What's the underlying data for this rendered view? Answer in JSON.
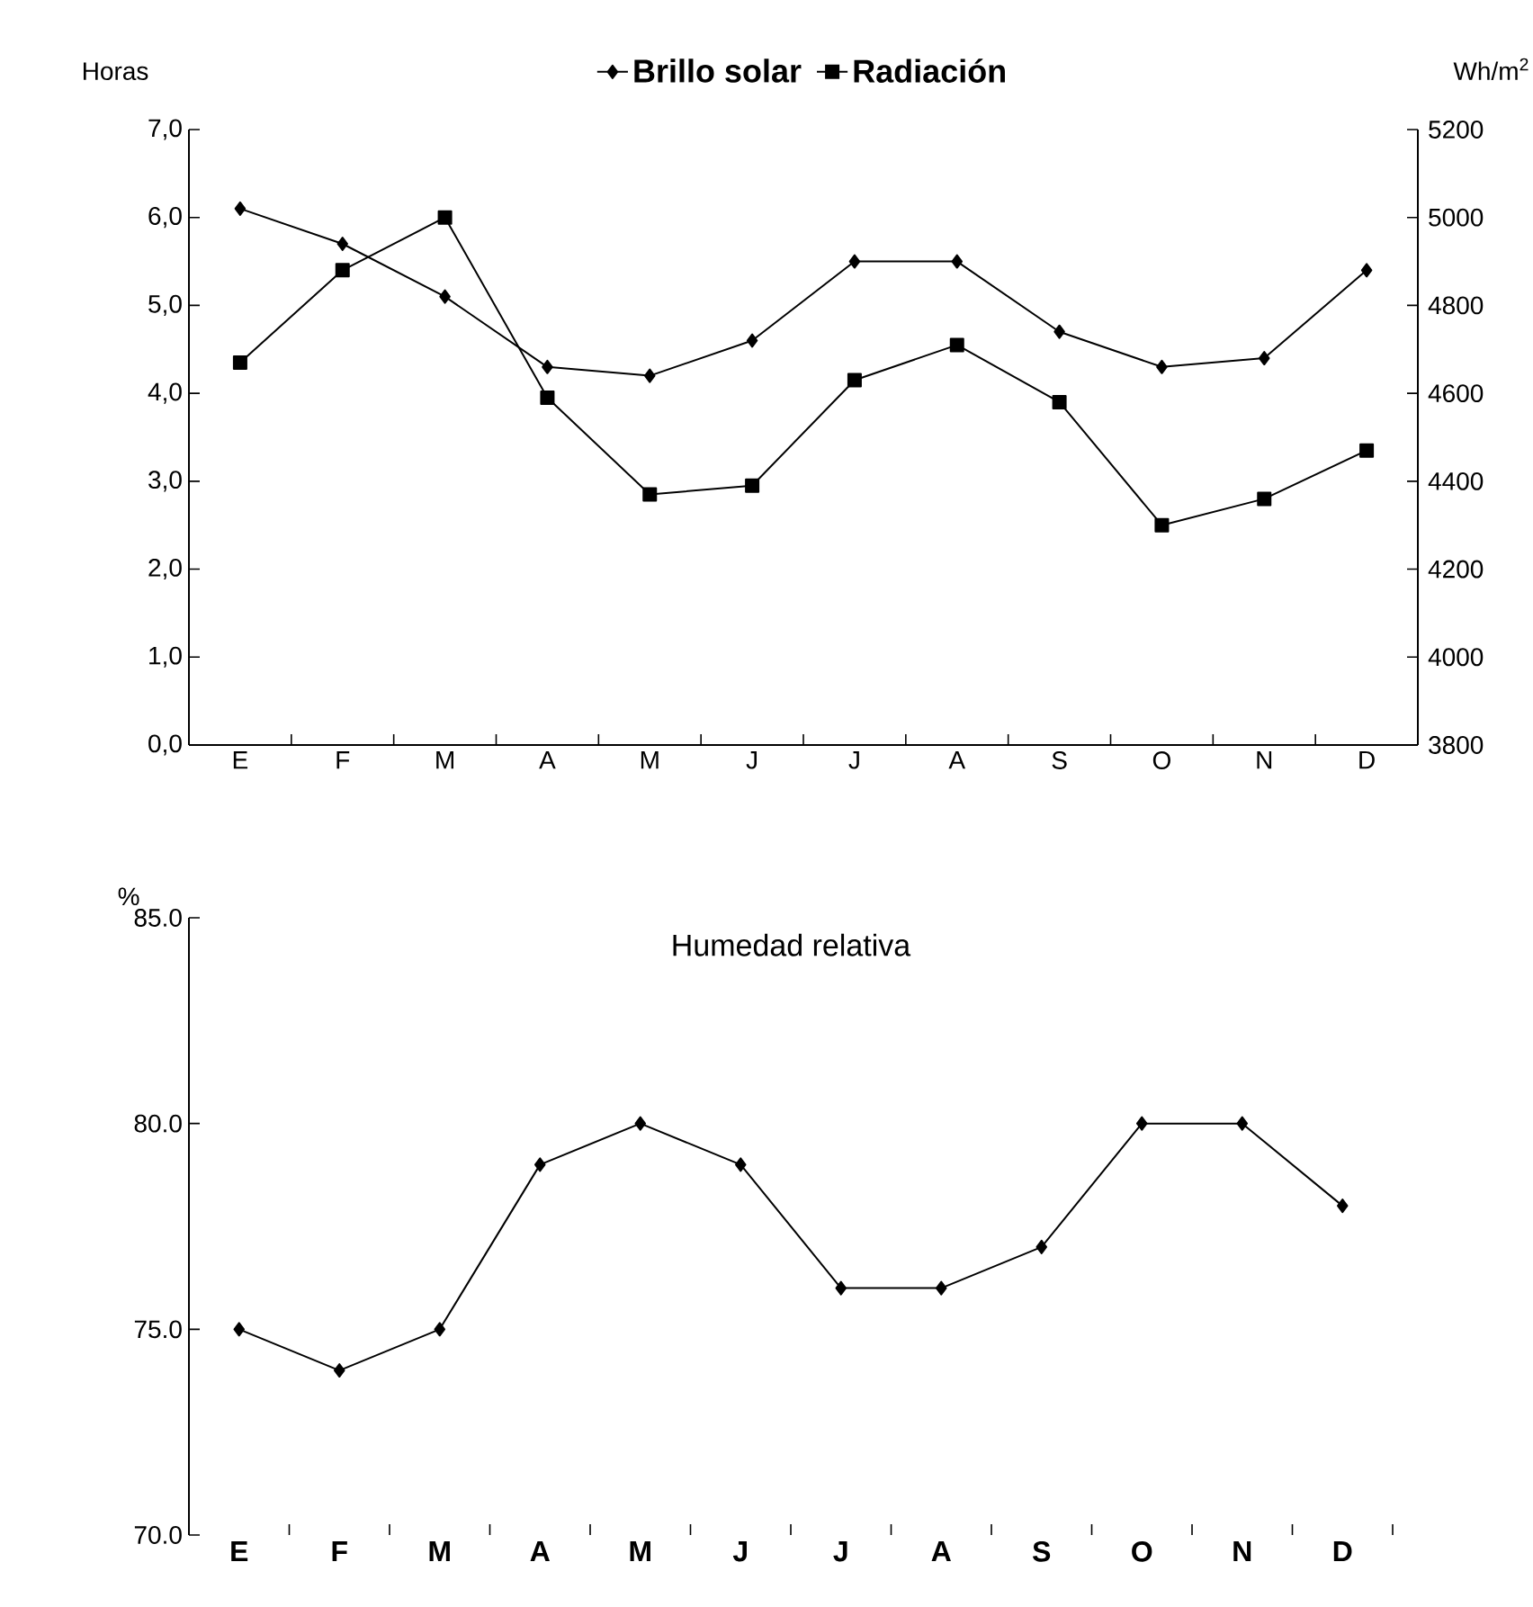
{
  "chart_data": [
    {
      "type": "line",
      "ylabel": "Horas",
      "y2label": "Wh/m$^{2}$",
      "legend": "top",
      "categories": [
        "E",
        "F",
        "M",
        "A",
        "M",
        "J",
        "J",
        "A",
        "S",
        "O",
        "N",
        "D"
      ],
      "series": [
        {
          "name": "Brillo solar",
          "color": "#000000",
          "marker": "diamond",
          "values": [
            6.1,
            5.7,
            5.1,
            4.3,
            4.2,
            4.6,
            5.5,
            5.5,
            4.7,
            4.3,
            4.4,
            5.4
          ]
        },
        {
          "name": "Radiación",
          "color": "#000000",
          "marker": "square",
          "axis": "y2",
          "values": [
            4670,
            4880,
            5000,
            4590,
            4370,
            4390,
            4630,
            4710,
            4580,
            4300,
            4360,
            4470
          ]
        }
      ],
      "ylim": [
        0,
        7
      ],
      "yticks": [
        {
          "value": 0,
          "label": "0,0"
        },
        {
          "value": 1,
          "label": "1,0"
        },
        {
          "value": 2,
          "label": "2,0"
        },
        {
          "value": 3,
          "label": "3,0"
        },
        {
          "value": 4,
          "label": "4,0"
        },
        {
          "value": 5,
          "label": "5,0"
        },
        {
          "value": 6,
          "label": "6,0"
        },
        {
          "value": 7,
          "label": "7,0"
        }
      ],
      "y2lim": [
        3800,
        5200
      ],
      "y2ticks": [
        3800,
        4000,
        4200,
        4400,
        4600,
        4800,
        5000,
        5200
      ]
    },
    {
      "type": "line",
      "title": "Humedad relativa",
      "ylabel": "%",
      "marker": "diamond",
      "categories": [
        "E",
        "F",
        "M",
        "A",
        "M",
        "J",
        "J",
        "A",
        "S",
        "O",
        "N",
        "D"
      ],
      "series": [
        {
          "color": "#000000",
          "values": [
            75,
            74,
            75,
            79,
            80,
            79,
            76,
            76,
            77,
            80,
            80,
            78
          ]
        }
      ],
      "ylim": [
        70,
        85
      ],
      "yticks": [
        {
          "value": 70,
          "label": "70.0"
        },
        {
          "value": 75,
          "label": "75.0"
        },
        {
          "value": 80,
          "label": "80.0"
        },
        {
          "value": 85,
          "label": "85.0"
        }
      ]
    }
  ]
}
